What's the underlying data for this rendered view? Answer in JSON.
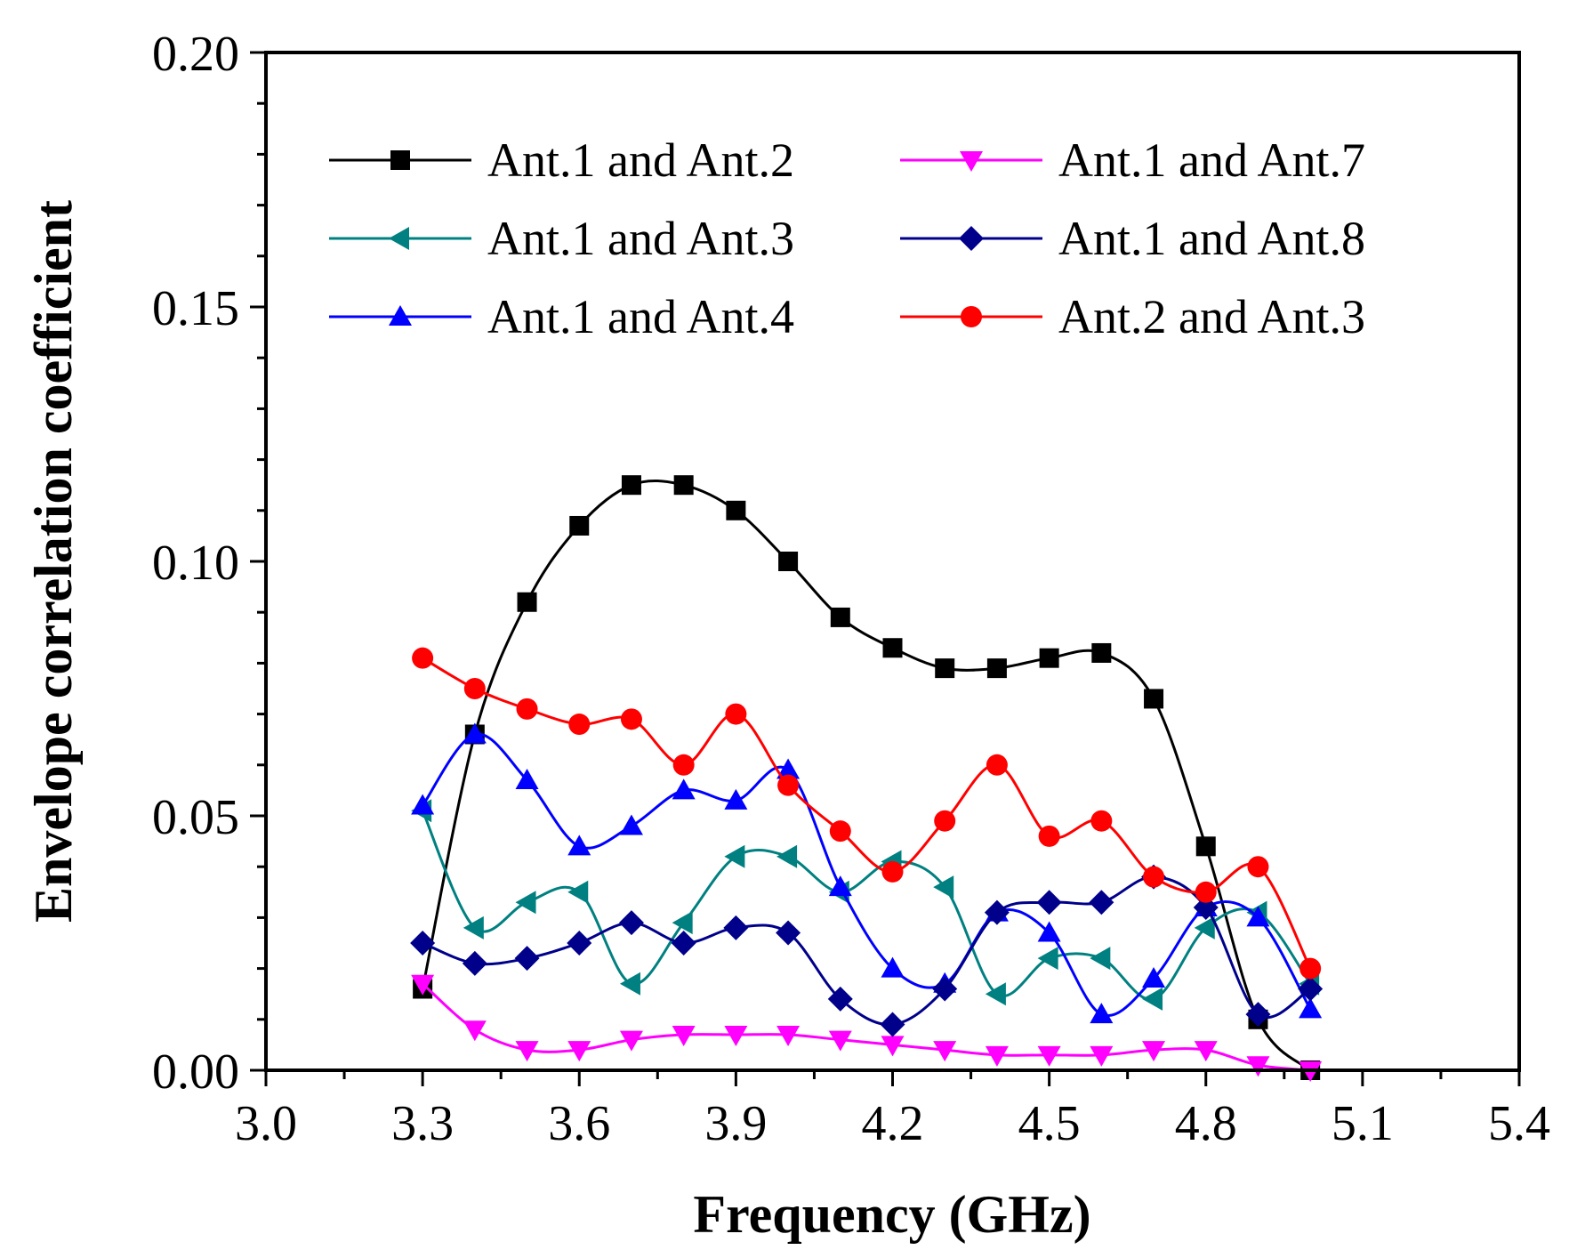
{
  "chart_data": {
    "type": "line",
    "xlabel": "Frequency (GHz)",
    "ylabel": "Envelope correlation coefficient",
    "xlim": [
      3.0,
      5.4
    ],
    "ylim": [
      0.0,
      0.2
    ],
    "xticks": [
      "3.0",
      "3.3",
      "3.6",
      "3.9",
      "4.2",
      "4.5",
      "4.8",
      "5.1",
      "5.4"
    ],
    "yticks": [
      "0.00",
      "0.05",
      "0.10",
      "0.15",
      "0.20"
    ],
    "legend_position": "top",
    "x": [
      3.3,
      3.4,
      3.5,
      3.6,
      3.7,
      3.8,
      3.9,
      4.0,
      4.1,
      4.2,
      4.3,
      4.4,
      4.5,
      4.6,
      4.7,
      4.8,
      4.9,
      5.0
    ],
    "series": [
      {
        "name": "Ant.1 and Ant.2",
        "color": "#000000",
        "marker": "square",
        "values": [
          0.016,
          0.066,
          0.092,
          0.107,
          0.115,
          0.115,
          0.11,
          0.1,
          0.089,
          0.083,
          0.079,
          0.079,
          0.081,
          0.082,
          0.073,
          0.044,
          0.01,
          0.0
        ]
      },
      {
        "name": "Ant.1 and Ant.3",
        "color": "#008080",
        "marker": "triangle-left",
        "values": [
          0.051,
          0.028,
          0.033,
          0.035,
          0.017,
          0.029,
          0.042,
          0.042,
          0.035,
          0.041,
          0.036,
          0.015,
          0.022,
          0.022,
          0.014,
          0.028,
          0.031,
          0.017
        ]
      },
      {
        "name": "Ant.1 and Ant.4",
        "color": "#0000ff",
        "marker": "triangle-up",
        "values": [
          0.052,
          0.066,
          0.057,
          0.044,
          0.048,
          0.055,
          0.053,
          0.059,
          0.036,
          0.02,
          0.017,
          0.031,
          0.027,
          0.011,
          0.018,
          0.032,
          0.03,
          0.012
        ]
      },
      {
        "name": "Ant.1 and Ant.7",
        "color": "#ff00ff",
        "marker": "triangle-down",
        "values": [
          0.017,
          0.008,
          0.004,
          0.004,
          0.006,
          0.007,
          0.007,
          0.007,
          0.006,
          0.005,
          0.004,
          0.003,
          0.003,
          0.003,
          0.004,
          0.004,
          0.001,
          0.0
        ]
      },
      {
        "name": "Ant.1 and Ant.8",
        "color": "#00008b",
        "marker": "diamond",
        "values": [
          0.025,
          0.021,
          0.022,
          0.025,
          0.029,
          0.025,
          0.028,
          0.027,
          0.014,
          0.009,
          0.016,
          0.031,
          0.033,
          0.033,
          0.038,
          0.032,
          0.011,
          0.016
        ]
      },
      {
        "name": "Ant.2 and Ant.3",
        "color": "#ff0000",
        "marker": "circle",
        "values": [
          0.081,
          0.075,
          0.071,
          0.068,
          0.069,
          0.06,
          0.07,
          0.056,
          0.047,
          0.039,
          0.049,
          0.06,
          0.046,
          0.049,
          0.038,
          0.035,
          0.04,
          0.02
        ]
      }
    ]
  }
}
